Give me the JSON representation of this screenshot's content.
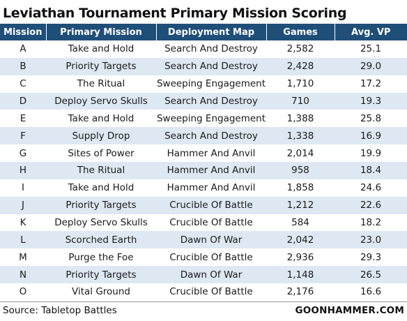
{
  "title": "Leviathan Tournament Primary Mission Scoring",
  "table": {
    "headers": {
      "mission": "Mission",
      "primary_mission": "Primary Mission",
      "deployment_map": "Deployment Map",
      "games": "Games",
      "avg_vp": "Avg. VP"
    },
    "rows": [
      {
        "mission": "A",
        "primary_mission": "Take and Hold",
        "deployment_map": "Search And Destroy",
        "games": "2,582",
        "avg_vp": "25.1"
      },
      {
        "mission": "B",
        "primary_mission": "Priority Targets",
        "deployment_map": "Search And Destroy",
        "games": "2,428",
        "avg_vp": "29.0"
      },
      {
        "mission": "C",
        "primary_mission": "The Ritual",
        "deployment_map": "Sweeping Engagement",
        "games": "1,710",
        "avg_vp": "17.2"
      },
      {
        "mission": "D",
        "primary_mission": "Deploy Servo Skulls",
        "deployment_map": "Search And Destroy",
        "games": "710",
        "avg_vp": "19.3"
      },
      {
        "mission": "E",
        "primary_mission": "Take and Hold",
        "deployment_map": "Sweeping Engagement",
        "games": "1,388",
        "avg_vp": "25.8"
      },
      {
        "mission": "F",
        "primary_mission": "Supply Drop",
        "deployment_map": "Search And Destroy",
        "games": "1,338",
        "avg_vp": "16.9"
      },
      {
        "mission": "G",
        "primary_mission": "Sites of Power",
        "deployment_map": "Hammer And Anvil",
        "games": "2,014",
        "avg_vp": "19.9"
      },
      {
        "mission": "H",
        "primary_mission": "The Ritual",
        "deployment_map": "Hammer And Anvil",
        "games": "958",
        "avg_vp": "18.4"
      },
      {
        "mission": "I",
        "primary_mission": "Take and Hold",
        "deployment_map": "Hammer And Anvil",
        "games": "1,858",
        "avg_vp": "24.6"
      },
      {
        "mission": "J",
        "primary_mission": "Priority Targets",
        "deployment_map": "Crucible Of Battle",
        "games": "1,212",
        "avg_vp": "22.6"
      },
      {
        "mission": "K",
        "primary_mission": "Deploy Servo Skulls",
        "deployment_map": "Crucible Of Battle",
        "games": "584",
        "avg_vp": "18.2"
      },
      {
        "mission": "L",
        "primary_mission": "Scorched Earth",
        "deployment_map": "Dawn Of War",
        "games": "2,042",
        "avg_vp": "23.0"
      },
      {
        "mission": "M",
        "primary_mission": "Purge the Foe",
        "deployment_map": "Crucible Of Battle",
        "games": "2,936",
        "avg_vp": "29.3"
      },
      {
        "mission": "N",
        "primary_mission": "Priority Targets",
        "deployment_map": "Dawn Of War",
        "games": "1,148",
        "avg_vp": "26.5"
      },
      {
        "mission": "O",
        "primary_mission": "Vital Ground",
        "deployment_map": "Crucible Of Battle",
        "games": "2,176",
        "avg_vp": "16.6"
      }
    ]
  },
  "footer": {
    "source": "Source: Tabletop Battles",
    "brand": "GOONHAMMER.COM"
  },
  "colors": {
    "header_bg": "#1f4e79",
    "header_text": "#ffffff",
    "stripe": "#dde8f3",
    "row": "#ffffff"
  }
}
